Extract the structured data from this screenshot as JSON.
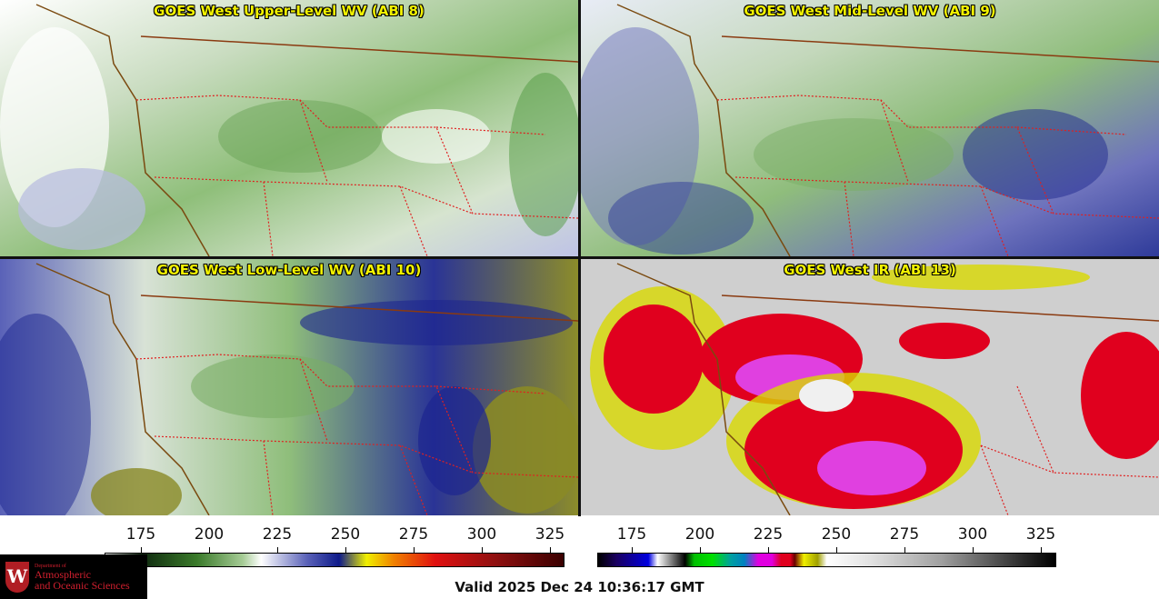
{
  "panels": [
    {
      "title": "GOES West Upper-Level WV (ABI 8)",
      "colors": [
        "#ffffff",
        "#e8f0e4",
        "#8fbf7a",
        "#c8dcc0",
        "#b9bde4",
        "#ffffff"
      ]
    },
    {
      "title": "GOES West Mid-Level WV (ABI 9)",
      "colors": [
        "#f4f6fb",
        "#8ab77a",
        "#d8e6d0",
        "#2f3b9a",
        "#7b80c4",
        "#ffffff"
      ]
    },
    {
      "title": "GOES West Low-Level WV (ABI 10)",
      "colors": [
        "#e6ece4",
        "#7fb06c",
        "#1c2590",
        "#4a54b2",
        "#8a8a26",
        "#ffffff"
      ]
    },
    {
      "title": "GOES West IR (ABI 13)",
      "colors": [
        "#cfcfcf",
        "#e0001e",
        "#e040e0",
        "#e8e000",
        "#6f6f30",
        "#f0f0f0"
      ]
    }
  ],
  "wv_scale": {
    "ticks": [
      "175",
      "200",
      "225",
      "250",
      "275",
      "300",
      "325"
    ]
  },
  "ir_scale": {
    "ticks": [
      "175",
      "200",
      "225",
      "250",
      "275",
      "300",
      "325"
    ]
  },
  "logo": {
    "dept": "Department of",
    "line1": "Atmospheric",
    "line2": "and Oceanic Sciences",
    "crest": "W"
  },
  "valid_text": "Valid 2025 Dec 24 10:36:17 GMT"
}
